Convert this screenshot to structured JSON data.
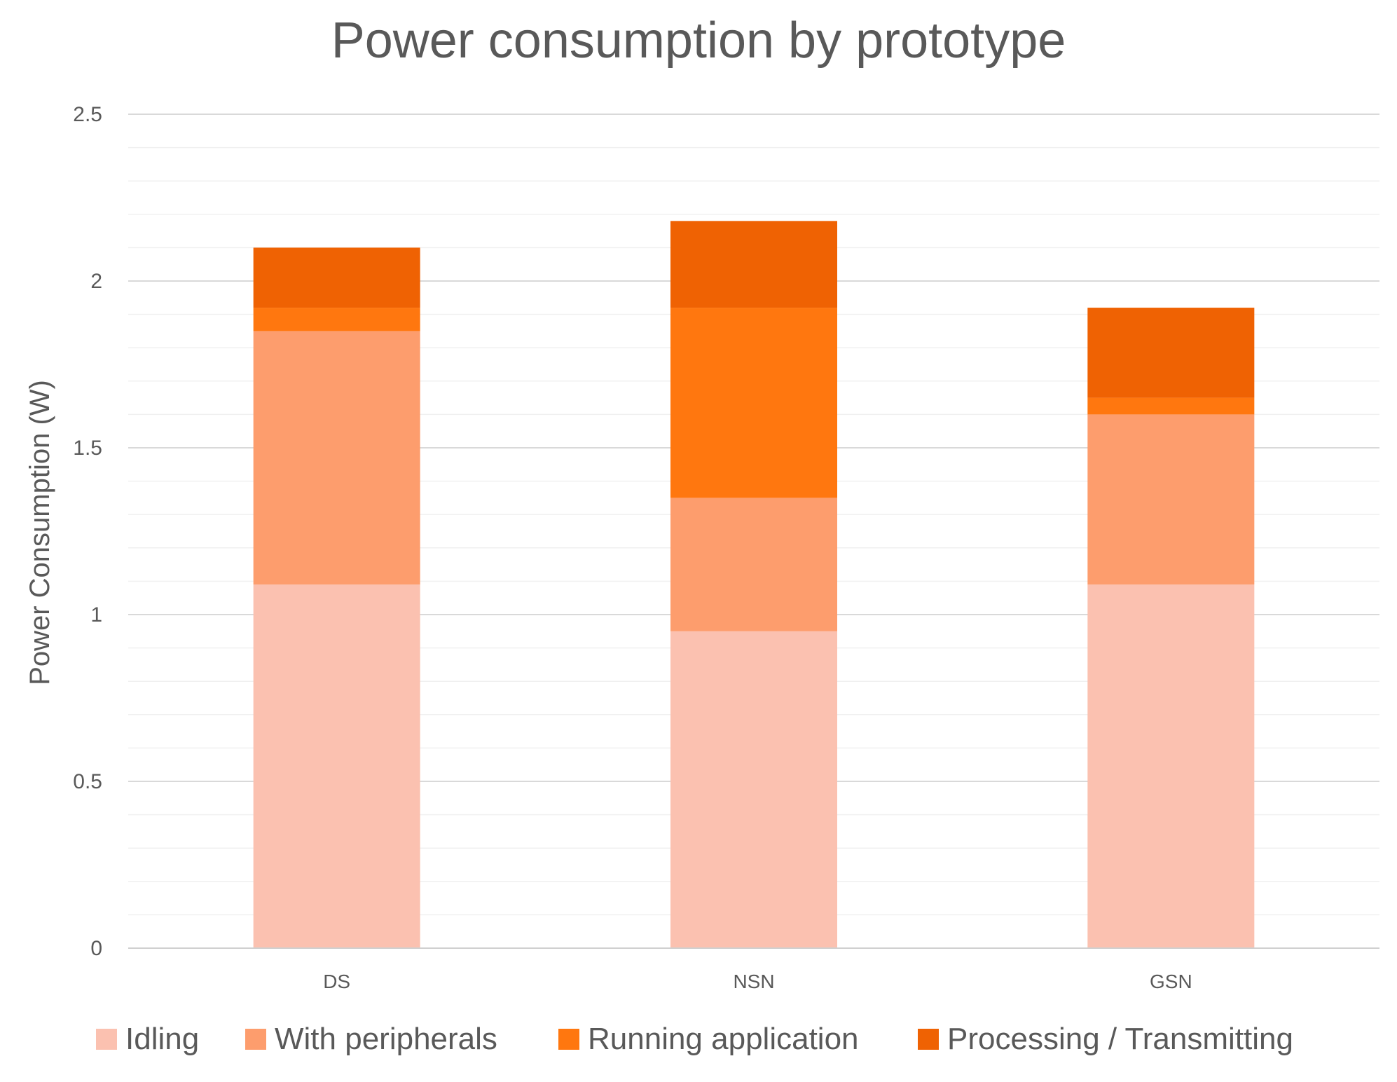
{
  "chart_data": {
    "type": "bar",
    "stacked": true,
    "title": "Power consumption by prototype",
    "xlabel": "",
    "ylabel": "Power Consumption (W)",
    "ylim": [
      0,
      2.5
    ],
    "yticks": [
      0,
      0.5,
      1,
      1.5,
      2,
      2.5
    ],
    "ytick_labels": [
      "0",
      "0.5",
      "1",
      "1.5",
      "2",
      "2.5"
    ],
    "grid": true,
    "legend_position": "bottom",
    "categories": [
      "DS",
      "NSN",
      "GSN"
    ],
    "series": [
      {
        "name": "Idling",
        "color": "#FBC1B0",
        "values": [
          1.09,
          0.95,
          1.09
        ]
      },
      {
        "name": "With peripherals",
        "color": "#FD9D6D",
        "values": [
          0.76,
          0.4,
          0.51
        ]
      },
      {
        "name": "Running application",
        "color": "#FF770F",
        "values": [
          0.07,
          0.57,
          0.05
        ]
      },
      {
        "name": "Processing / Transmitting",
        "color": "#EF6203",
        "values": [
          0.18,
          0.26,
          0.27
        ]
      }
    ]
  }
}
